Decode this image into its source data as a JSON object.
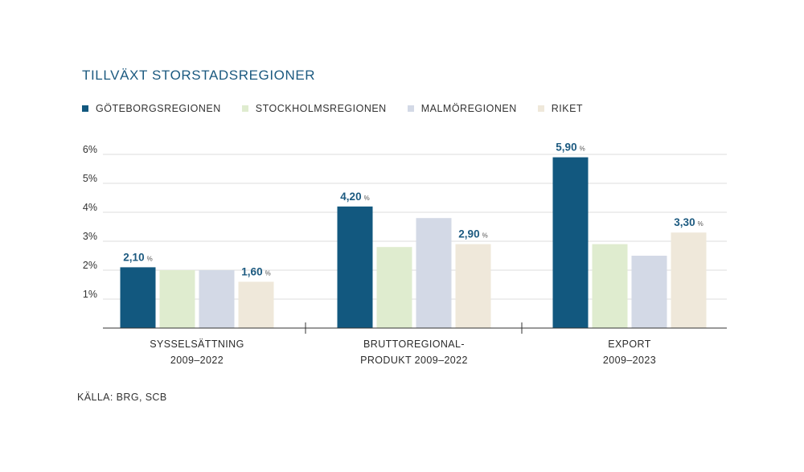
{
  "title": "TILLVÄXT STORSTADSREGIONER",
  "source": "KÄLLA: BRG, SCB",
  "chart_data": {
    "type": "bar",
    "title": "TILLVÄXT STORSTADSREGIONER",
    "categories": [
      [
        "SYSSELSÄTTNING",
        "2009–2022"
      ],
      [
        "BRUTTOREGIONAL-",
        "PRODUKT 2009–2022"
      ],
      [
        "EXPORT",
        "2009–2023"
      ]
    ],
    "series": [
      {
        "name": "GÖTEBORGSREGIONEN",
        "color": "#12587f",
        "values": [
          2.1,
          4.2,
          5.9
        ]
      },
      {
        "name": "STOCKHOLMSREGIONEN",
        "color": "#dfeccf",
        "values": [
          2.0,
          2.8,
          2.9
        ]
      },
      {
        "name": "MALMÖREGIONEN",
        "color": "#d3d9e6",
        "values": [
          2.0,
          3.8,
          2.5
        ]
      },
      {
        "name": "RIKET",
        "color": "#efe8da",
        "values": [
          1.6,
          2.9,
          3.3
        ]
      }
    ],
    "data_labels": [
      {
        "series": 0,
        "category": 0,
        "text": "2,10",
        "unit": "%"
      },
      {
        "series": 3,
        "category": 0,
        "text": "1,60",
        "unit": "%"
      },
      {
        "series": 0,
        "category": 1,
        "text": "4,20",
        "unit": "%"
      },
      {
        "series": 3,
        "category": 1,
        "text": "2,90",
        "unit": "%"
      },
      {
        "series": 0,
        "category": 2,
        "text": "5,90",
        "unit": "%"
      },
      {
        "series": 3,
        "category": 2,
        "text": "3,30",
        "unit": "%"
      }
    ],
    "yticks": [
      {
        "value": 1,
        "label": "1%"
      },
      {
        "value": 2,
        "label": "2%"
      },
      {
        "value": 3,
        "label": "3%"
      },
      {
        "value": 4,
        "label": "4%"
      },
      {
        "value": 5,
        "label": "5%"
      },
      {
        "value": 6,
        "label": "6%"
      }
    ],
    "ylim": [
      0,
      6
    ],
    "grid": true,
    "legend_position": "top-left"
  }
}
